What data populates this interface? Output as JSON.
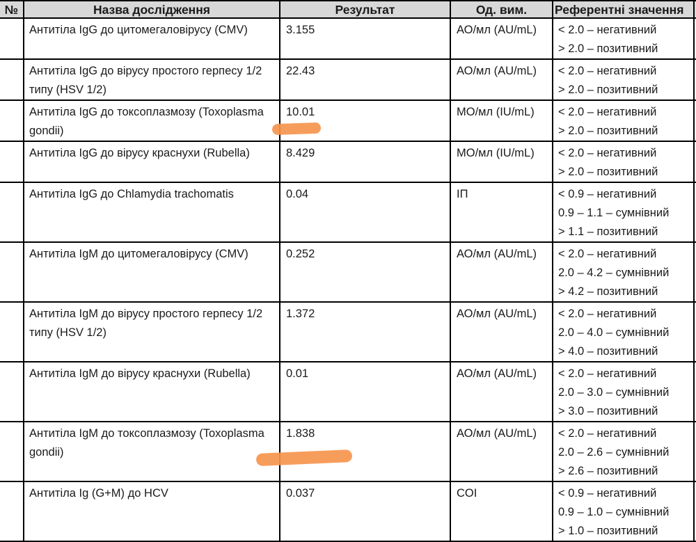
{
  "colors": {
    "header_bg": "#d8d8d8",
    "border": "#000000",
    "highlight": "#f6954e",
    "text": "#1a1a1a"
  },
  "header": {
    "col_num": "№",
    "col_name": "Назва дослідження",
    "col_result": "Результат",
    "col_units": "Од. вим.",
    "col_reference": "Референтні значення"
  },
  "rows": [
    {
      "name": "Антитіла IgG до цитомегаловірусу (CMV)",
      "result": "3.155",
      "units": "АО/мл (AU/mL)",
      "ref": [
        "< 2.0 – негативний",
        "> 2.0 – позитивний"
      ]
    },
    {
      "name": "Антитіла IgG до вірусу простого герпесу 1/2 типу (HSV 1/2)",
      "result": "22.43",
      "units": "АО/мл (AU/mL)",
      "ref": [
        "< 2.0 – негативний",
        "> 2.0 – позитивний"
      ]
    },
    {
      "name": "Антитіла IgG до токсоплазмозу (Toxoplasma gondii)",
      "result": "10.01",
      "units": "МО/мл (IU/mL)",
      "ref": [
        "< 2.0 – негативний",
        "> 2.0 – позитивний"
      ],
      "highlighted": true
    },
    {
      "name": "Антитіла IgG до вірусу краснухи (Rubella)",
      "result": "8.429",
      "units": "МО/мл (IU/mL)",
      "ref": [
        "< 2.0 – негативний",
        "> 2.0 – позитивний"
      ]
    },
    {
      "name": "Антитіла IgG до Chlamydia trachomatis",
      "result": "0.04",
      "units": "ІП",
      "ref": [
        "< 0.9 – негативний",
        "0.9 – 1.1 – сумнівний",
        "> 1.1 – позитивний"
      ]
    },
    {
      "name": "Антитіла IgM до цитомегаловірусу (CMV)",
      "result": "0.252",
      "units": "АО/мл (AU/mL)",
      "ref": [
        "< 2.0 – негативний",
        "2.0 – 4.2 – сумнівний",
        "> 4.2 – позитивний"
      ]
    },
    {
      "name": "Антитіла IgM до вірусу простого герпесу 1/2 типу (HSV 1/2)",
      "result": "1.372",
      "units": "АО/мл (AU/mL)",
      "ref": [
        "< 2.0 – негативний",
        "2.0 – 4.0 – сумнівний",
        "> 4.0 – позитивний"
      ]
    },
    {
      "name": "Антитіла IgM до вірусу краснухи (Rubella)",
      "result": "0.01",
      "units": "АО/мл (AU/mL)",
      "ref": [
        "< 2.0 – негативний",
        "2.0 – 3.0 – сумнівний",
        "> 3.0 – позитивний"
      ]
    },
    {
      "name": "Антитіла IgM до токсоплазмозу (Toxoplasma gondii)",
      "result": "1.838",
      "units": "АО/мл (AU/mL)",
      "ref": [
        "< 2.0 – негативний",
        "2.0 – 2.6 – сумнівний",
        "> 2.6 – позитивний"
      ],
      "highlighted": true
    },
    {
      "name": "Антитіла Ig (G+M) до HCV",
      "result": "0.037",
      "units": "COI",
      "ref": [
        "< 0.9 – негативний",
        "0.9 – 1.0 – сумнівний",
        "> 1.0 – позитивний"
      ]
    }
  ]
}
